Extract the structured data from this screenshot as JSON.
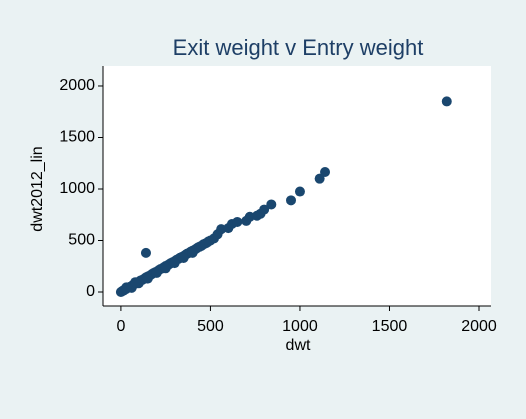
{
  "chart_data": {
    "type": "scatter",
    "title": "Exit weight v Entry weight",
    "xlabel": "dwt",
    "ylabel": "dwt2012_lin",
    "color": "#1a476f",
    "grid": false,
    "x": [
      0,
      5,
      10,
      15,
      20,
      25,
      30,
      40,
      50,
      60,
      70,
      80,
      90,
      100,
      110,
      120,
      130,
      140,
      150,
      160,
      170,
      180,
      190,
      200,
      210,
      220,
      230,
      240,
      250,
      260,
      270,
      280,
      290,
      300,
      310,
      320,
      330,
      340,
      350,
      360,
      370,
      380,
      390,
      400,
      410,
      420,
      430,
      440,
      450,
      460,
      470,
      480,
      490,
      500,
      520,
      540,
      560,
      600,
      620,
      650,
      700,
      720,
      760,
      780,
      800,
      840,
      950,
      1000,
      1110,
      1140,
      1820,
      140,
      60,
      100,
      150,
      200,
      250,
      300,
      350,
      400,
      30,
      80
    ],
    "values": [
      0,
      5,
      12,
      14,
      22,
      28,
      30,
      42,
      50,
      58,
      72,
      80,
      88,
      100,
      112,
      118,
      128,
      142,
      150,
      158,
      170,
      182,
      190,
      198,
      210,
      222,
      228,
      240,
      252,
      258,
      270,
      282,
      290,
      298,
      312,
      320,
      332,
      340,
      348,
      360,
      372,
      378,
      392,
      400,
      408,
      420,
      432,
      440,
      448,
      462,
      470,
      478,
      492,
      500,
      520,
      560,
      610,
      620,
      660,
      680,
      690,
      730,
      740,
      760,
      800,
      850,
      890,
      975,
      1100,
      1165,
      1850,
      380,
      40,
      85,
      130,
      185,
      230,
      280,
      330,
      380,
      45,
      95
    ],
    "xlim": [
      -100,
      2067
    ],
    "ylim": [
      -136,
      2194
    ],
    "xticks": [
      0,
      500,
      1000,
      1500,
      2000
    ],
    "yticks": [
      0,
      500,
      1000,
      1500,
      2000
    ]
  }
}
